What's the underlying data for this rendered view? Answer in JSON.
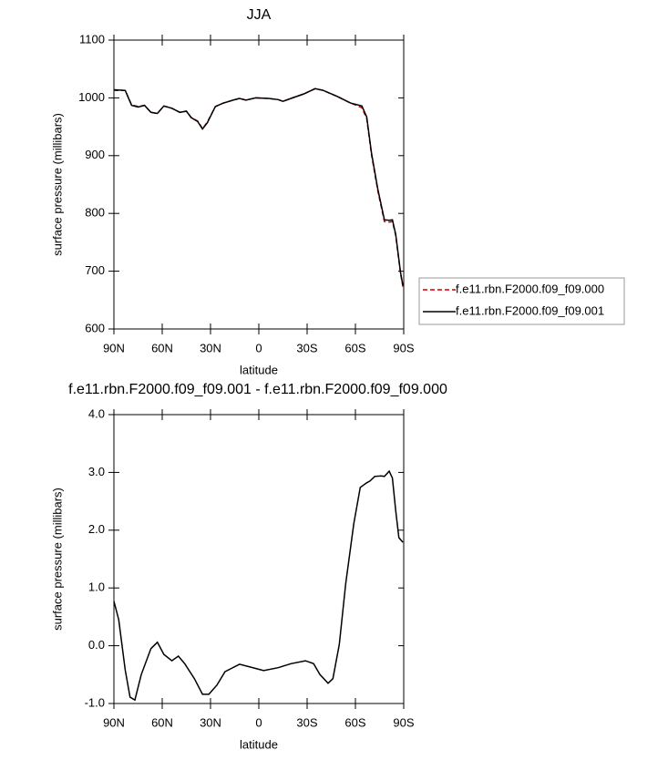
{
  "chart_data": [
    {
      "type": "line",
      "title": "JJA",
      "xlabel": "latitude",
      "ylabel": "surface pressure (millibars)",
      "x": [
        90,
        83,
        79,
        75,
        71,
        67,
        63,
        59,
        54,
        49,
        45,
        42,
        38,
        35,
        32,
        27,
        22,
        16,
        12,
        8,
        2,
        -6,
        -12,
        -15,
        -20,
        -28,
        -35,
        -40,
        -49,
        -57,
        -64,
        -67,
        -70,
        -74,
        -78,
        -81,
        -83,
        -85,
        -88,
        -89.5
      ],
      "series": [
        {
          "name": "f.e11.rbn.F2000.f09_f09.000",
          "color": "#cc0000",
          "dash": true,
          "values": [
            1013,
            1013,
            988,
            985,
            987,
            975,
            973,
            986,
            982,
            975,
            977,
            966,
            960,
            947,
            958,
            985,
            991,
            996,
            999,
            996,
            1000,
            999,
            997,
            994,
            999,
            1007,
            1016,
            1013,
            1002,
            991,
            983,
            964,
            901,
            838,
            786,
            785,
            786,
            762,
            696,
            673
          ]
        },
        {
          "name": "f.e11.rbn.F2000.f09_f09.001",
          "color": "#000000",
          "dash": false,
          "values": [
            1014,
            1013,
            987,
            984,
            987,
            975,
            973,
            986,
            982,
            975,
            977,
            966,
            959,
            946,
            957,
            985,
            991,
            996,
            999,
            996,
            1000,
            999,
            997,
            994,
            999,
            1007,
            1016,
            1013,
            1002,
            991,
            986,
            967,
            904,
            841,
            789,
            788,
            789,
            764,
            698,
            675
          ]
        }
      ],
      "xlim": [
        90,
        -90
      ],
      "xticks": [
        {
          "value": 90,
          "label": "90N"
        },
        {
          "value": 60,
          "label": "60N"
        },
        {
          "value": 30,
          "label": "30N"
        },
        0,
        {
          "value": -30,
          "label": "30S"
        },
        {
          "value": -60,
          "label": "60S"
        },
        {
          "value": -90,
          "label": "90S"
        }
      ],
      "ylim": [
        600,
        1100
      ],
      "yticks": [
        600,
        700,
        800,
        900,
        1000,
        1100
      ],
      "legend": "right"
    },
    {
      "type": "line",
      "title": "f.e11.rbn.F2000.f09_f09.001 - f.e11.rbn.F2000.f09_f09.000",
      "xlabel": "latitude",
      "ylabel": "surface pressure (millibars)",
      "x": [
        90,
        87,
        83,
        80,
        77,
        73,
        67,
        63,
        59,
        54,
        50,
        46,
        40,
        35,
        31,
        26,
        21,
        12,
        5,
        -3,
        -12,
        -20,
        -29,
        -34,
        -38,
        -43,
        -46,
        -50,
        -54,
        -59,
        -63,
        -67,
        -69,
        -72,
        -76,
        -78,
        -81,
        -83,
        -85,
        -87,
        -89.5
      ],
      "series": [
        {
          "color": "#000000",
          "dash": false,
          "values": [
            0.77,
            0.45,
            -0.42,
            -0.89,
            -0.94,
            -0.5,
            -0.05,
            0.06,
            -0.15,
            -0.26,
            -0.18,
            -0.31,
            -0.57,
            -0.84,
            -0.84,
            -0.68,
            -0.45,
            -0.32,
            -0.37,
            -0.43,
            -0.38,
            -0.31,
            -0.26,
            -0.31,
            -0.5,
            -0.65,
            -0.57,
            0.02,
            1.08,
            2.11,
            2.74,
            2.82,
            2.85,
            2.93,
            2.94,
            2.93,
            3.02,
            2.9,
            2.34,
            1.87,
            1.79
          ]
        }
      ],
      "xlim": [
        90,
        -90
      ],
      "xticks": [
        {
          "value": 90,
          "label": "90N"
        },
        {
          "value": 60,
          "label": "60N"
        },
        {
          "value": 30,
          "label": "30N"
        },
        0,
        {
          "value": -30,
          "label": "30S"
        },
        {
          "value": -60,
          "label": "60S"
        },
        {
          "value": -90,
          "label": "90S"
        }
      ],
      "ylim": [
        -1,
        4
      ],
      "yticks": [
        {
          "value": -1,
          "label": "-1.0"
        },
        {
          "value": 0,
          "label": "0.0"
        },
        {
          "value": 1,
          "label": "1.0"
        },
        {
          "value": 2,
          "label": "2.0"
        },
        {
          "value": 3,
          "label": "3.0"
        },
        {
          "value": 4,
          "label": "4.0"
        }
      ]
    }
  ]
}
